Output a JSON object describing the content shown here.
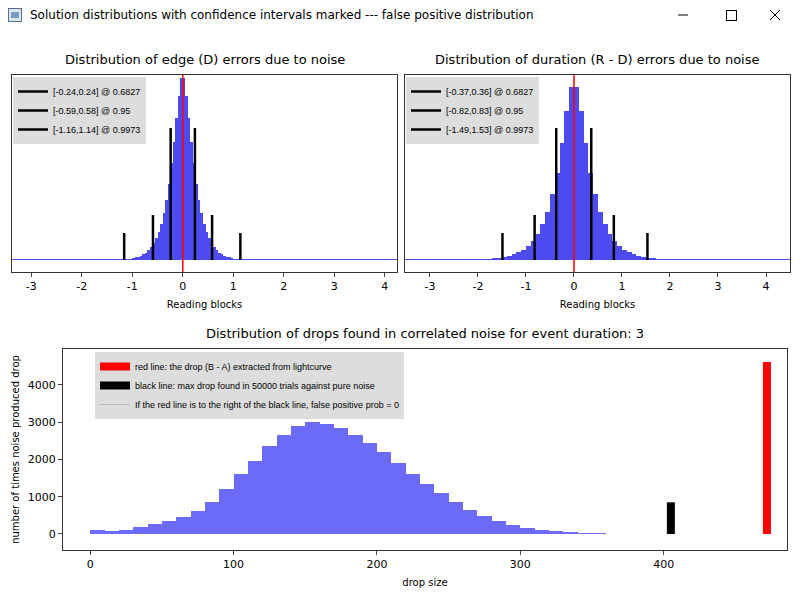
{
  "window_title": "Solution distributions with confidence intervals marked --- false positive distribution",
  "chart_data": [
    {
      "type": "histogram",
      "title": "Distribution of edge (D) errors due to noise",
      "xlabel": "Reading blocks",
      "bins": [
        -1.5,
        -1.45,
        -1.4,
        -1.35,
        -1.3,
        -1.25,
        -1.2,
        -1.15,
        -1.1,
        -1.05,
        -1,
        -0.95,
        -0.9,
        -0.85,
        -0.8,
        -0.75,
        -0.7,
        -0.65,
        -0.6,
        -0.55,
        -0.5,
        -0.45,
        -0.4,
        -0.35,
        -0.3,
        -0.25,
        -0.2,
        -0.15,
        -0.1,
        -0.05,
        0,
        0.05,
        0.1,
        0.15,
        0.2,
        0.25,
        0.3,
        0.35,
        0.4,
        0.45,
        0.5,
        0.55,
        0.6,
        0.65,
        0.7,
        0.75,
        0.8,
        0.85,
        0.9,
        0.95,
        1,
        1.05,
        1.1,
        1.15,
        1.2,
        1.25,
        1.3,
        1.35,
        1.4,
        1.45,
        1.5
      ],
      "counts": [
        1,
        1,
        1,
        2,
        2,
        3,
        4,
        5,
        6,
        8,
        10,
        14,
        18,
        24,
        31,
        41,
        54,
        70,
        92,
        120,
        155,
        200,
        260,
        330,
        420,
        530,
        650,
        780,
        900,
        1000,
        1000,
        900,
        780,
        650,
        530,
        420,
        330,
        260,
        200,
        155,
        120,
        92,
        70,
        54,
        41,
        31,
        24,
        18,
        14,
        10,
        8,
        6,
        5,
        4,
        3,
        2,
        2,
        1,
        1,
        1
      ],
      "color": "#4b4bf0",
      "xlim": [
        -3.38,
        4.24
      ],
      "xticks": [
        -3,
        -2,
        -1,
        0,
        1,
        2,
        3,
        4
      ],
      "ylim": [
        -66,
        1016
      ],
      "tick_labels": "x",
      "grid": false,
      "reference": {
        "x": 0,
        "color": "red"
      },
      "intervals": [
        {
          "lo": -0.24,
          "hi": 0.24,
          "height": 725,
          "color": "black",
          "label": "[-0.24,0.24] @ 0.6827"
        },
        {
          "lo": -0.59,
          "hi": 0.58,
          "height": 247,
          "color": "black",
          "label": "[-0.59,0.58] @ 0.95"
        },
        {
          "lo": -1.16,
          "hi": 1.14,
          "height": 148,
          "color": "black",
          "label": "[-1.16,1.14] @ 0.9973"
        }
      ]
    },
    {
      "type": "histogram",
      "title": "Distribution of duration (R - D) errors due to noise",
      "xlabel": "Reading blocks",
      "bins": [
        -2,
        -1.9,
        -1.8,
        -1.7,
        -1.6,
        -1.5,
        -1.4,
        -1.3,
        -1.2,
        -1.1,
        -1,
        -0.9,
        -0.8,
        -0.7,
        -0.6,
        -0.5,
        -0.4,
        -0.3,
        -0.2,
        -0.1,
        0,
        0.1,
        0.2,
        0.3,
        0.4,
        0.5,
        0.6,
        0.7,
        0.8,
        0.9,
        1,
        1.1,
        1.2,
        1.3,
        1.4,
        1.5,
        1.6,
        1.7,
        1.8,
        1.9,
        2
      ],
      "counts": [
        3,
        4,
        6,
        9,
        12,
        17,
        23,
        31,
        42,
        57,
        78,
        105,
        145,
        195,
        265,
        360,
        480,
        640,
        820,
        950,
        950,
        820,
        640,
        480,
        360,
        265,
        195,
        145,
        105,
        78,
        57,
        42,
        31,
        23,
        17,
        12,
        9,
        6,
        4,
        3
      ],
      "color": "#4b4bf0",
      "xlim": [
        -3.52,
        4.5
      ],
      "xticks": [
        -3,
        -2,
        -1,
        0,
        1,
        2,
        3,
        4
      ],
      "ylim": [
        -66,
        1016
      ],
      "tick_labels": "x",
      "grid": false,
      "reference": {
        "x": 0,
        "color": "red"
      },
      "intervals": [
        {
          "lo": -0.37,
          "hi": 0.36,
          "height": 725,
          "color": "black",
          "label": "[-0.37,0.36] @ 0.6827"
        },
        {
          "lo": -0.82,
          "hi": 0.83,
          "height": 247,
          "color": "black",
          "label": "[-0.82,0.83] @ 0.95"
        },
        {
          "lo": -1.49,
          "hi": 1.53,
          "height": 148,
          "color": "black",
          "label": "[-1.49,1.53] @ 0.9973"
        }
      ]
    },
    {
      "type": "histogram",
      "title": "Distribution of drops found in correlated noise for event duration: 3",
      "xlabel": "drop size",
      "ylabel": "number of times noise produced drop",
      "bins": [
        0,
        10,
        20,
        30,
        40,
        50,
        60,
        70,
        80,
        90,
        100,
        110,
        120,
        130,
        140,
        150,
        160,
        170,
        180,
        190,
        200,
        210,
        220,
        230,
        240,
        250,
        260,
        270,
        280,
        290,
        300,
        310,
        320,
        330,
        340,
        350,
        360,
        370,
        380,
        390,
        400
      ],
      "counts": [
        100,
        70,
        120,
        180,
        260,
        340,
        460,
        620,
        850,
        1200,
        1600,
        1950,
        2350,
        2650,
        2900,
        3000,
        2950,
        2850,
        2650,
        2450,
        2200,
        1900,
        1600,
        1350,
        1100,
        850,
        640,
        480,
        350,
        250,
        170,
        110,
        70,
        40,
        25,
        15,
        8,
        5,
        3,
        2
      ],
      "color": "#6b6bf7",
      "xlim": [
        -19,
        486
      ],
      "xticks": [
        0,
        100,
        200,
        300,
        400
      ],
      "ylim": [
        -430,
        4966
      ],
      "yticks": [
        0,
        1000,
        2000,
        3000,
        4000
      ],
      "grid": false,
      "lines": [
        {
          "name": "red line: the drop (B - A) extracted from lightcurve",
          "x": 472,
          "y": 4620,
          "color": "red"
        },
        {
          "name": "black line: max drop found in 50000 trials against pure noise",
          "x": 405,
          "y": 850,
          "color": "black"
        }
      ],
      "note": "If the red line is to the right of the black line, false positive prob = 0"
    }
  ]
}
